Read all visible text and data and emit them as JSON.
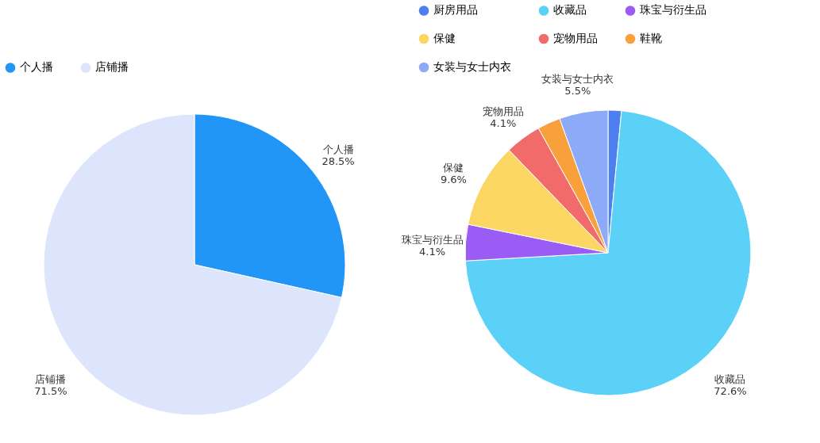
{
  "chart_data": [
    {
      "type": "pie",
      "categories": [
        "个人播",
        "店铺播"
      ],
      "values": [
        28.5,
        71.5
      ],
      "colors": [
        "#2196f7",
        "#dce5fb"
      ],
      "value_labels": [
        "28.5%",
        "71.5%"
      ],
      "legend": "top"
    },
    {
      "type": "pie",
      "categories": [
        "厨房用品",
        "收藏品",
        "珠宝与衍生品",
        "保健",
        "宠物用品",
        "鞋靴",
        "女装与女士内衣"
      ],
      "values": [
        1.5,
        72.6,
        4.1,
        9.6,
        4.1,
        2.6,
        5.5
      ],
      "colors": [
        "#4e7ff0",
        "#5bd1f7",
        "#9b5cf6",
        "#fbd662",
        "#f26b6b",
        "#f7a03c",
        "#8caaf8"
      ],
      "value_labels": [
        null,
        "72.6%",
        "4.1%",
        "9.6%",
        "4.1%",
        null,
        "5.5%"
      ],
      "legend": "top"
    }
  ]
}
